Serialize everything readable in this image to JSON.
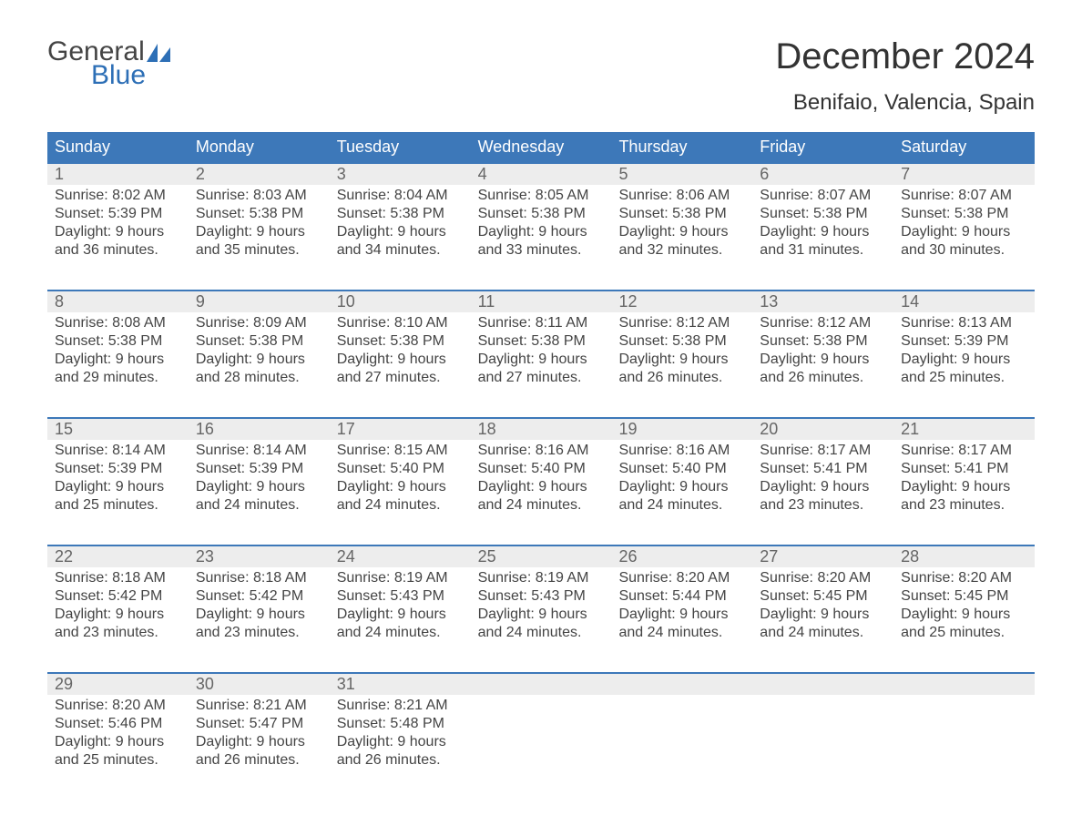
{
  "logo": {
    "word1": "General",
    "word2": "Blue",
    "text_color": "#444444",
    "accent_color": "#2d6fb6"
  },
  "title": "December 2024",
  "location": "Benifaio, Valencia, Spain",
  "colors": {
    "header_bg": "#3d78b9",
    "header_text": "#ffffff",
    "row_accent": "#3d78b9",
    "daynum_bg": "#ededed",
    "daynum_text": "#666666",
    "body_text": "#444444",
    "page_bg": "#ffffff"
  },
  "typography": {
    "title_fontsize": 40,
    "location_fontsize": 24,
    "weekday_fontsize": 18,
    "daynum_fontsize": 18,
    "body_fontsize": 16
  },
  "weekdays": [
    "Sunday",
    "Monday",
    "Tuesday",
    "Wednesday",
    "Thursday",
    "Friday",
    "Saturday"
  ],
  "weeks": [
    [
      {
        "n": "1",
        "sunrise": "8:02 AM",
        "sunset": "5:39 PM",
        "dl1": "Daylight: 9 hours",
        "dl2": "and 36 minutes."
      },
      {
        "n": "2",
        "sunrise": "8:03 AM",
        "sunset": "5:38 PM",
        "dl1": "Daylight: 9 hours",
        "dl2": "and 35 minutes."
      },
      {
        "n": "3",
        "sunrise": "8:04 AM",
        "sunset": "5:38 PM",
        "dl1": "Daylight: 9 hours",
        "dl2": "and 34 minutes."
      },
      {
        "n": "4",
        "sunrise": "8:05 AM",
        "sunset": "5:38 PM",
        "dl1": "Daylight: 9 hours",
        "dl2": "and 33 minutes."
      },
      {
        "n": "5",
        "sunrise": "8:06 AM",
        "sunset": "5:38 PM",
        "dl1": "Daylight: 9 hours",
        "dl2": "and 32 minutes."
      },
      {
        "n": "6",
        "sunrise": "8:07 AM",
        "sunset": "5:38 PM",
        "dl1": "Daylight: 9 hours",
        "dl2": "and 31 minutes."
      },
      {
        "n": "7",
        "sunrise": "8:07 AM",
        "sunset": "5:38 PM",
        "dl1": "Daylight: 9 hours",
        "dl2": "and 30 minutes."
      }
    ],
    [
      {
        "n": "8",
        "sunrise": "8:08 AM",
        "sunset": "5:38 PM",
        "dl1": "Daylight: 9 hours",
        "dl2": "and 29 minutes."
      },
      {
        "n": "9",
        "sunrise": "8:09 AM",
        "sunset": "5:38 PM",
        "dl1": "Daylight: 9 hours",
        "dl2": "and 28 minutes."
      },
      {
        "n": "10",
        "sunrise": "8:10 AM",
        "sunset": "5:38 PM",
        "dl1": "Daylight: 9 hours",
        "dl2": "and 27 minutes."
      },
      {
        "n": "11",
        "sunrise": "8:11 AM",
        "sunset": "5:38 PM",
        "dl1": "Daylight: 9 hours",
        "dl2": "and 27 minutes."
      },
      {
        "n": "12",
        "sunrise": "8:12 AM",
        "sunset": "5:38 PM",
        "dl1": "Daylight: 9 hours",
        "dl2": "and 26 minutes."
      },
      {
        "n": "13",
        "sunrise": "8:12 AM",
        "sunset": "5:38 PM",
        "dl1": "Daylight: 9 hours",
        "dl2": "and 26 minutes."
      },
      {
        "n": "14",
        "sunrise": "8:13 AM",
        "sunset": "5:39 PM",
        "dl1": "Daylight: 9 hours",
        "dl2": "and 25 minutes."
      }
    ],
    [
      {
        "n": "15",
        "sunrise": "8:14 AM",
        "sunset": "5:39 PM",
        "dl1": "Daylight: 9 hours",
        "dl2": "and 25 minutes."
      },
      {
        "n": "16",
        "sunrise": "8:14 AM",
        "sunset": "5:39 PM",
        "dl1": "Daylight: 9 hours",
        "dl2": "and 24 minutes."
      },
      {
        "n": "17",
        "sunrise": "8:15 AM",
        "sunset": "5:40 PM",
        "dl1": "Daylight: 9 hours",
        "dl2": "and 24 minutes."
      },
      {
        "n": "18",
        "sunrise": "8:16 AM",
        "sunset": "5:40 PM",
        "dl1": "Daylight: 9 hours",
        "dl2": "and 24 minutes."
      },
      {
        "n": "19",
        "sunrise": "8:16 AM",
        "sunset": "5:40 PM",
        "dl1": "Daylight: 9 hours",
        "dl2": "and 24 minutes."
      },
      {
        "n": "20",
        "sunrise": "8:17 AM",
        "sunset": "5:41 PM",
        "dl1": "Daylight: 9 hours",
        "dl2": "and 23 minutes."
      },
      {
        "n": "21",
        "sunrise": "8:17 AM",
        "sunset": "5:41 PM",
        "dl1": "Daylight: 9 hours",
        "dl2": "and 23 minutes."
      }
    ],
    [
      {
        "n": "22",
        "sunrise": "8:18 AM",
        "sunset": "5:42 PM",
        "dl1": "Daylight: 9 hours",
        "dl2": "and 23 minutes."
      },
      {
        "n": "23",
        "sunrise": "8:18 AM",
        "sunset": "5:42 PM",
        "dl1": "Daylight: 9 hours",
        "dl2": "and 23 minutes."
      },
      {
        "n": "24",
        "sunrise": "8:19 AM",
        "sunset": "5:43 PM",
        "dl1": "Daylight: 9 hours",
        "dl2": "and 24 minutes."
      },
      {
        "n": "25",
        "sunrise": "8:19 AM",
        "sunset": "5:43 PM",
        "dl1": "Daylight: 9 hours",
        "dl2": "and 24 minutes."
      },
      {
        "n": "26",
        "sunrise": "8:20 AM",
        "sunset": "5:44 PM",
        "dl1": "Daylight: 9 hours",
        "dl2": "and 24 minutes."
      },
      {
        "n": "27",
        "sunrise": "8:20 AM",
        "sunset": "5:45 PM",
        "dl1": "Daylight: 9 hours",
        "dl2": "and 24 minutes."
      },
      {
        "n": "28",
        "sunrise": "8:20 AM",
        "sunset": "5:45 PM",
        "dl1": "Daylight: 9 hours",
        "dl2": "and 25 minutes."
      }
    ],
    [
      {
        "n": "29",
        "sunrise": "8:20 AM",
        "sunset": "5:46 PM",
        "dl1": "Daylight: 9 hours",
        "dl2": "and 25 minutes."
      },
      {
        "n": "30",
        "sunrise": "8:21 AM",
        "sunset": "5:47 PM",
        "dl1": "Daylight: 9 hours",
        "dl2": "and 26 minutes."
      },
      {
        "n": "31",
        "sunrise": "8:21 AM",
        "sunset": "5:48 PM",
        "dl1": "Daylight: 9 hours",
        "dl2": "and 26 minutes."
      },
      null,
      null,
      null,
      null
    ]
  ],
  "labels": {
    "sunrise_prefix": "Sunrise: ",
    "sunset_prefix": "Sunset: "
  }
}
